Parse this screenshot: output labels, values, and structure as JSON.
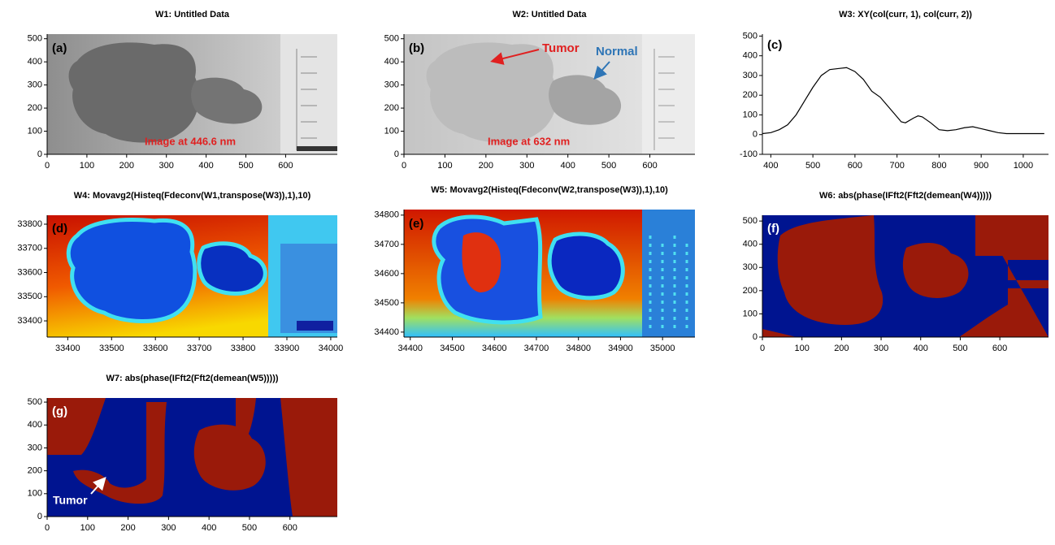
{
  "chart_data": [
    {
      "type": "image",
      "title": "W1: Untitled Data",
      "label": "(a)",
      "annotations": [
        "Image at 446.6 nm"
      ],
      "xlim": [
        0,
        730
      ],
      "xticks": [
        0,
        100,
        200,
        300,
        400,
        500,
        600
      ],
      "ylim": [
        0,
        520
      ],
      "yticks": [
        0,
        100,
        200,
        300,
        400,
        500
      ]
    },
    {
      "type": "image",
      "title": "W2: Untitled Data",
      "label": "(b)",
      "annotations": [
        "Tumor",
        "Normal",
        "Image at 632 nm"
      ],
      "xlim": [
        0,
        710
      ],
      "xticks": [
        0,
        100,
        200,
        300,
        400,
        500,
        600
      ],
      "ylim": [
        0,
        520
      ],
      "yticks": [
        0,
        100,
        200,
        300,
        400,
        500
      ]
    },
    {
      "type": "line",
      "title": "W3: XY(col(curr, 1), col(curr, 2))",
      "label": "(c)",
      "color": "#000000",
      "x": [
        380,
        400,
        420,
        440,
        460,
        480,
        500,
        520,
        540,
        560,
        580,
        600,
        620,
        640,
        660,
        680,
        700,
        710,
        720,
        740,
        750,
        760,
        780,
        800,
        820,
        840,
        860,
        880,
        900,
        920,
        940,
        960,
        1000,
        1050
      ],
      "values": [
        5,
        10,
        25,
        50,
        100,
        170,
        240,
        300,
        330,
        335,
        340,
        320,
        280,
        220,
        190,
        140,
        90,
        65,
        60,
        85,
        95,
        90,
        60,
        25,
        20,
        25,
        35,
        40,
        30,
        20,
        10,
        5,
        5,
        5
      ],
      "xlim": [
        380,
        1060
      ],
      "xticks": [
        400,
        500,
        600,
        700,
        800,
        900,
        1000
      ],
      "ylim": [
        -100,
        510
      ],
      "yticks": [
        -100,
        0,
        100,
        200,
        300,
        400,
        500
      ]
    },
    {
      "type": "image",
      "title": "W4: Movavg2(Histeq(Fdeconv(W1,transpose(W3)),1),10)",
      "label": "(d)",
      "xlim": [
        33353,
        34015
      ],
      "xticks": [
        33400,
        33500,
        33600,
        33700,
        33800,
        33900,
        34000
      ],
      "ylim": [
        33333,
        33837
      ],
      "yticks": [
        33400,
        33500,
        33600,
        33700,
        33800
      ]
    },
    {
      "type": "image",
      "title": "W5: Movavg2(Histeq(Fdeconv(W2,transpose(W3)),1),10)",
      "label": "(e)",
      "xlim": [
        34385,
        35077
      ],
      "xticks": [
        34400,
        34500,
        34600,
        34700,
        34800,
        34900,
        35000
      ],
      "ylim": [
        34383,
        34819
      ],
      "yticks": [
        34400,
        34500,
        34600,
        34700,
        34800
      ]
    },
    {
      "type": "image",
      "title": "W6: abs(phase(IFft2(Fft2(demean(W4)))))",
      "label": "(f)",
      "xlim": [
        0,
        723
      ],
      "xticks": [
        0,
        100,
        200,
        300,
        400,
        500,
        600
      ],
      "ylim": [
        0,
        525
      ],
      "yticks": [
        0,
        100,
        200,
        300,
        400,
        500
      ]
    },
    {
      "type": "image",
      "title": "W7: abs(phase(IFft2(Fft2(demean(W5)))))",
      "label": "(g)",
      "annotations": [
        "Tumor"
      ],
      "xlim": [
        0,
        717
      ],
      "xticks": [
        0,
        100,
        200,
        300,
        400,
        500,
        600
      ],
      "ylim": [
        0,
        518
      ],
      "yticks": [
        0,
        100,
        200,
        300,
        400,
        500
      ]
    }
  ]
}
